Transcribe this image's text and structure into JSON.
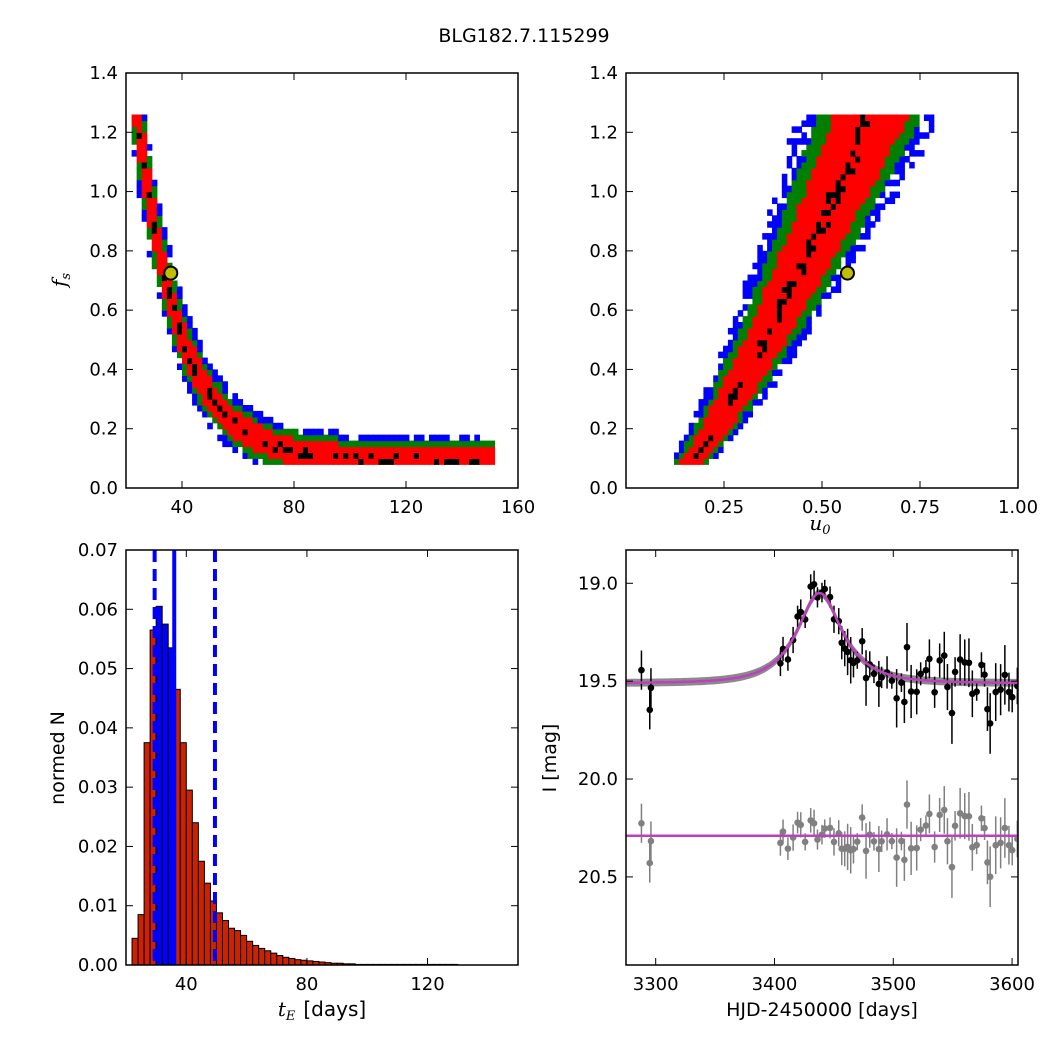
{
  "figure_title": "BLG182.7.115299",
  "colors": {
    "blue": "#0000ff",
    "green": "#007f00",
    "red": "#ff0000",
    "black": "#000000",
    "yellow": "#bfbf00",
    "magenta": "#bf40bf",
    "gray": "#808080",
    "hist_red": "#cc2200"
  },
  "chart_data": [
    {
      "id": "ts-fs",
      "type": "heatmap",
      "title": "",
      "xlabel": "",
      "ylabel": "f",
      "ylabel_sub": "s",
      "xlim": [
        20,
        160
      ],
      "ylim": [
        0.0,
        1.4
      ],
      "xticks": [
        40,
        80,
        120,
        160
      ],
      "yticks": [
        0.0,
        0.2,
        0.4,
        0.6,
        0.8,
        1.0,
        1.2,
        1.4
      ],
      "best_fit": {
        "x": 36,
        "y": 0.725
      },
      "confidence_levels": [
        "black",
        "red",
        "green",
        "blue"
      ],
      "band_curve": {
        "a": 0.085,
        "b": 0.97,
        "x0": 26,
        "tau": 15.5
      }
    },
    {
      "id": "u0-fs",
      "type": "heatmap",
      "title": "",
      "xlabel": "u",
      "xlabel_sub": "0",
      "ylabel": "",
      "xlim": [
        0.0,
        1.0
      ],
      "ylim": [
        0.0,
        1.4
      ],
      "xticks": [
        0.25,
        0.5,
        0.75,
        1.0
      ],
      "yticks": [
        0.0,
        0.2,
        0.4,
        0.6,
        0.8,
        1.0,
        1.2,
        1.4
      ],
      "best_fit": {
        "x": 0.565,
        "y": 0.725
      },
      "confidence_levels": [
        "black",
        "red",
        "green",
        "blue"
      ]
    },
    {
      "id": "te-hist",
      "type": "bar",
      "title": "",
      "xlabel": "t",
      "xlabel_sub": "E",
      "xlabel_suffix": "[days]",
      "ylabel": "normed N",
      "xlim": [
        20,
        150
      ],
      "ylim": [
        0.0,
        0.07
      ],
      "xticks": [
        40,
        80,
        120
      ],
      "yticks": [
        "0.00",
        "0.01",
        "0.02",
        "0.03",
        "0.04",
        "0.05",
        "0.06",
        "0.07"
      ],
      "bin_width": 2,
      "bins_start": 22,
      "values": [
        0.0045,
        0.0085,
        0.0375,
        0.0565,
        0.0605,
        0.0575,
        0.0535,
        0.0465,
        0.0375,
        0.0295,
        0.024,
        0.0175,
        0.0138,
        0.0108,
        0.0088,
        0.0075,
        0.0062,
        0.0058,
        0.005,
        0.004,
        0.0033,
        0.0028,
        0.0024,
        0.002,
        0.0016,
        0.0013,
        0.0011,
        0.0009,
        0.0008,
        0.0007,
        0.0006,
        0.0005,
        0.0004,
        0.0003,
        0.0003,
        0.0002,
        0.0002,
        0.0001,
        0.0001,
        0.0001,
        0.0001,
        0.0001,
        0.0001,
        0.0001,
        0.0001,
        0.0001,
        0.0001,
        0.0001,
        0.0001,
        0.0001,
        0.0001,
        0.0001,
        0.0001,
        0.0001
      ],
      "highlight_bins": [
        4,
        5,
        6
      ],
      "median": 36,
      "lower": 29.5,
      "upper": 49.5
    },
    {
      "id": "lightcurve",
      "type": "scatter",
      "title": "",
      "xlabel": "HJD-2450000 [days]",
      "ylabel": "I [mag]",
      "xlim": [
        3275,
        3605
      ],
      "ylim": [
        20.95,
        18.83
      ],
      "y_inverted": true,
      "xticks": [
        3300,
        3400,
        3500,
        3600
      ],
      "yticks": [
        "19.0",
        "19.5",
        "20.0",
        "20.5"
      ],
      "model": {
        "t0": 3438,
        "baseline": 19.51,
        "peak": 19.05,
        "tE": 36,
        "u0": 0.565,
        "fs": 0.725
      },
      "residual_baseline": 20.29,
      "series": [
        {
          "name": "",
          "color": "black"
        },
        {
          "name": "",
          "color": "gray"
        }
      ]
    }
  ]
}
